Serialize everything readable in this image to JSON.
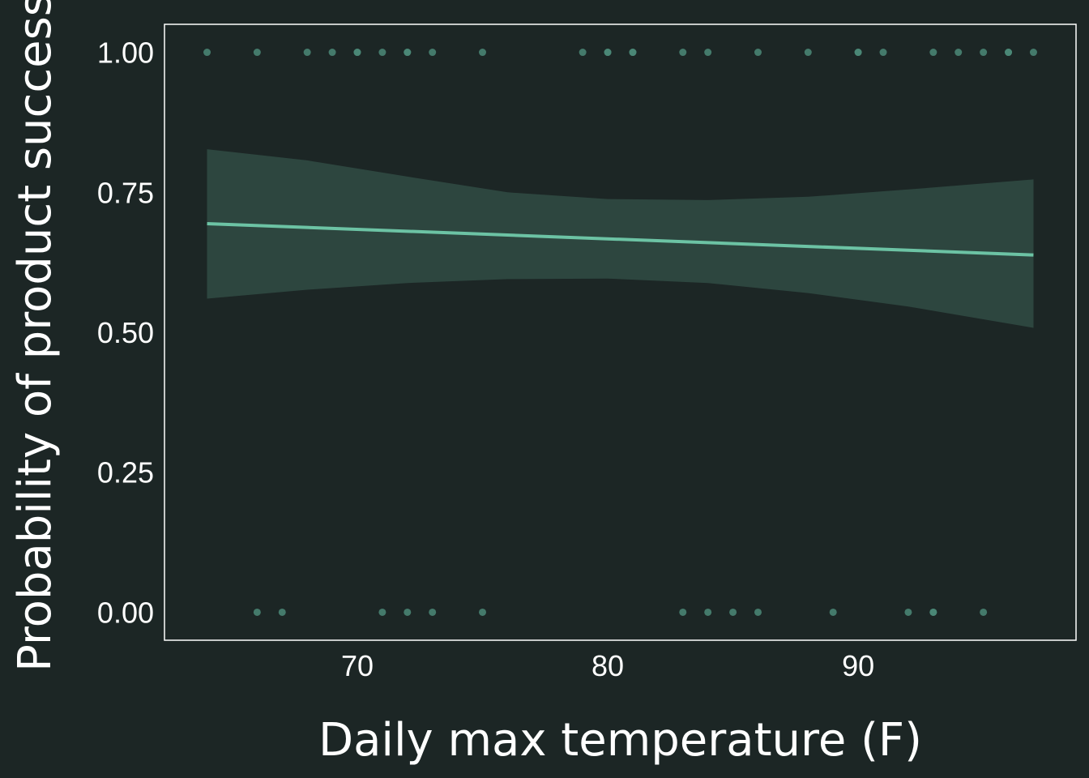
{
  "chart_data": {
    "type": "scatter",
    "title": "",
    "xlabel": "Daily max temperature (F)",
    "ylabel": "Probability of product success",
    "xlim": [
      62.3,
      98.7
    ],
    "ylim": [
      -0.05,
      1.05
    ],
    "xticks": [
      70,
      80,
      90
    ],
    "yticks": [
      0.0,
      0.25,
      0.5,
      0.75,
      1.0
    ],
    "ytick_labels": [
      "0.00",
      "0.25",
      "0.50",
      "0.75",
      "1.00"
    ],
    "grid": false,
    "colors": {
      "background": "#1c2625",
      "panel_border": "#ffffff",
      "points": "#4b8a78",
      "fit_line": "#6cc3a4",
      "confidence_band": "#2d463f"
    },
    "points": [
      {
        "x": 64,
        "y": 1
      },
      {
        "x": 66,
        "y": 1
      },
      {
        "x": 68,
        "y": 1
      },
      {
        "x": 69,
        "y": 1
      },
      {
        "x": 70,
        "y": 1
      },
      {
        "x": 70,
        "y": 1
      },
      {
        "x": 71,
        "y": 1
      },
      {
        "x": 72,
        "y": 1
      },
      {
        "x": 72,
        "y": 1
      },
      {
        "x": 73,
        "y": 1
      },
      {
        "x": 75,
        "y": 1
      },
      {
        "x": 79,
        "y": 1
      },
      {
        "x": 80,
        "y": 1
      },
      {
        "x": 80,
        "y": 1
      },
      {
        "x": 81,
        "y": 1
      },
      {
        "x": 81,
        "y": 1
      },
      {
        "x": 83,
        "y": 1
      },
      {
        "x": 84,
        "y": 1
      },
      {
        "x": 86,
        "y": 1
      },
      {
        "x": 88,
        "y": 1
      },
      {
        "x": 90,
        "y": 1
      },
      {
        "x": 90,
        "y": 1
      },
      {
        "x": 91,
        "y": 1
      },
      {
        "x": 93,
        "y": 1
      },
      {
        "x": 94,
        "y": 1
      },
      {
        "x": 95,
        "y": 1
      },
      {
        "x": 96,
        "y": 1
      },
      {
        "x": 96,
        "y": 1
      },
      {
        "x": 97,
        "y": 1
      },
      {
        "x": 66,
        "y": 0
      },
      {
        "x": 67,
        "y": 0
      },
      {
        "x": 71,
        "y": 0
      },
      {
        "x": 72,
        "y": 0
      },
      {
        "x": 73,
        "y": 0
      },
      {
        "x": 75,
        "y": 0
      },
      {
        "x": 83,
        "y": 0
      },
      {
        "x": 84,
        "y": 0
      },
      {
        "x": 85,
        "y": 0
      },
      {
        "x": 86,
        "y": 0
      },
      {
        "x": 89,
        "y": 0
      },
      {
        "x": 92,
        "y": 0
      },
      {
        "x": 93,
        "y": 0
      },
      {
        "x": 93,
        "y": 0
      },
      {
        "x": 95,
        "y": 0
      }
    ],
    "fit": {
      "x": [
        64,
        97
      ],
      "y": [
        0.694,
        0.638
      ]
    },
    "confidence_band": {
      "x": [
        64,
        68,
        72,
        76,
        80,
        84,
        88,
        92,
        97
      ],
      "lower": [
        0.56,
        0.576,
        0.588,
        0.595,
        0.596,
        0.588,
        0.57,
        0.546,
        0.508
      ],
      "upper": [
        0.827,
        0.807,
        0.778,
        0.75,
        0.738,
        0.736,
        0.742,
        0.755,
        0.773
      ]
    }
  }
}
